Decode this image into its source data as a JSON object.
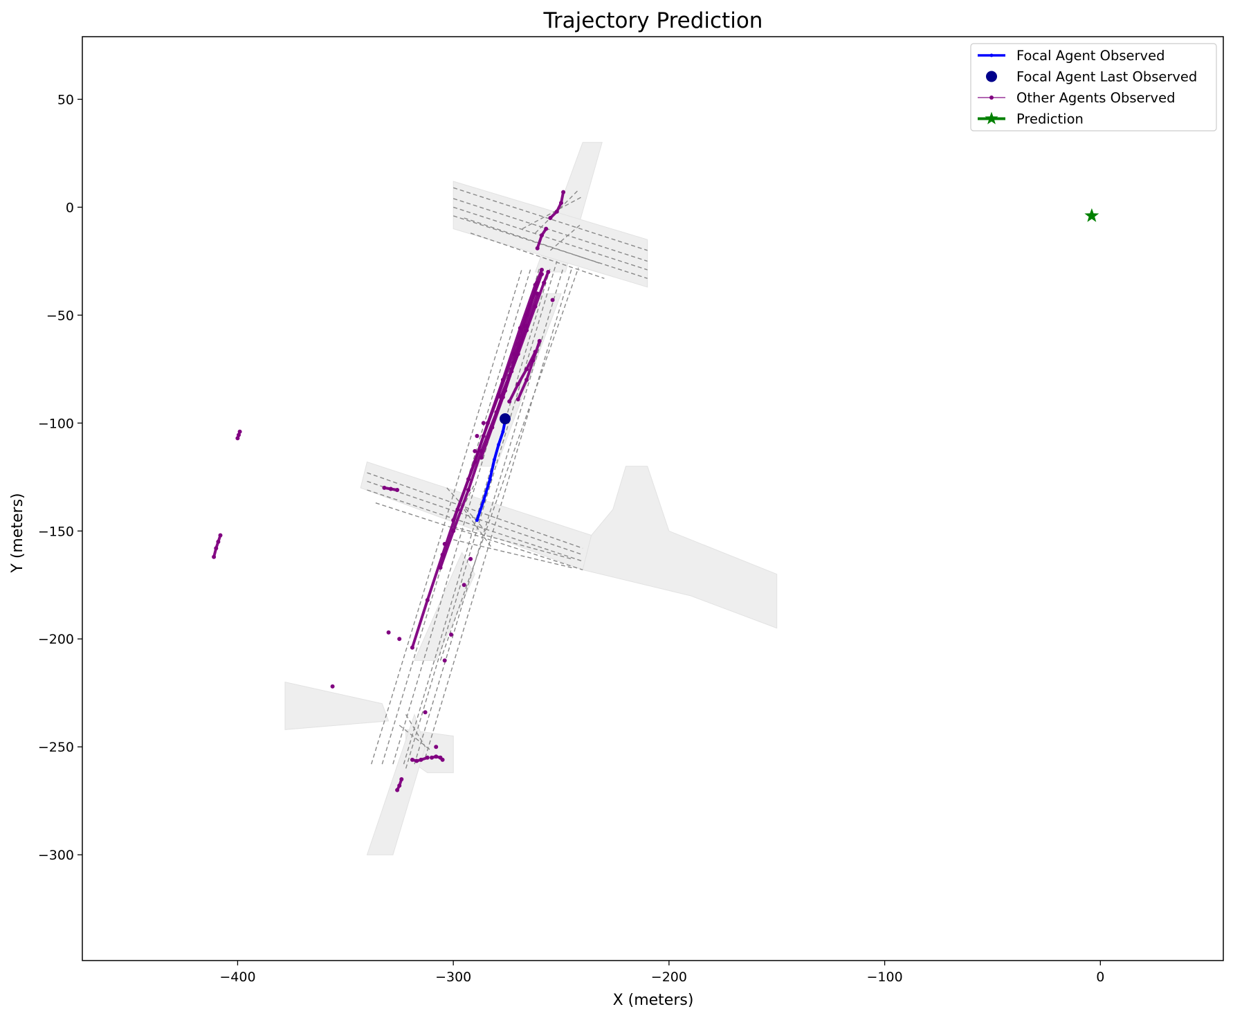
{
  "chart_data": {
    "type": "scatter",
    "title": "Trajectory Prediction",
    "xlabel": "X (meters)",
    "ylabel": "Y (meters)",
    "xlim": [
      -472,
      57
    ],
    "ylim": [
      -349,
      79
    ],
    "xticks": [
      -400,
      -300,
      -200,
      -100,
      0
    ],
    "yticks": [
      50,
      0,
      -50,
      -100,
      -150,
      -200,
      -250,
      -300
    ],
    "xtick_labels": [
      "−400",
      "−300",
      "−200",
      "−100",
      "0"
    ],
    "ytick_labels": [
      "50",
      "0",
      "−50",
      "−100",
      "−150",
      "−200",
      "−250",
      "−300"
    ],
    "grid": false,
    "legend_position": "top-right",
    "legend": [
      {
        "label": "Focal Agent Observed",
        "kind": "line-dot",
        "color": "#0000ff"
      },
      {
        "label": "Focal Agent Last Observed",
        "kind": "dot",
        "color": "#00008b"
      },
      {
        "label": "Other Agents Observed",
        "kind": "thin-line-dot",
        "color": "#800080"
      },
      {
        "label": "Prediction",
        "kind": "line-star",
        "color": "#008000"
      }
    ],
    "colors": {
      "focal": "#0000ff",
      "focal_last": "#00008b",
      "other": "#800080",
      "prediction": "#008000",
      "drivable_area": "#eeeeee",
      "lane_line": "#888888"
    },
    "drivable_areas": [
      [
        [
          -262,
          -30
        ],
        [
          -240,
          30
        ],
        [
          -231,
          30
        ],
        [
          -248,
          -30
        ]
      ],
      [
        [
          -300,
          12
        ],
        [
          -210,
          -15
        ],
        [
          -210,
          -37
        ],
        [
          -300,
          -10
        ]
      ],
      [
        [
          -343,
          -130
        ],
        [
          -240,
          -168
        ],
        [
          -236,
          -152
        ],
        [
          -340,
          -118
        ]
      ],
      [
        [
          -236,
          -152
        ],
        [
          -226,
          -140
        ],
        [
          -220,
          -120
        ],
        [
          -210,
          -120
        ],
        [
          -200,
          -150
        ],
        [
          -150,
          -170
        ],
        [
          -150,
          -195
        ],
        [
          -190,
          -180
        ],
        [
          -240,
          -168
        ]
      ],
      [
        [
          -333,
          -230
        ],
        [
          -378,
          -220
        ],
        [
          -378,
          -230
        ],
        [
          -378,
          -242
        ],
        [
          -330,
          -238
        ]
      ],
      [
        [
          -322,
          -242
        ],
        [
          -300,
          -245
        ],
        [
          -300,
          -262
        ],
        [
          -312,
          -262
        ],
        [
          -322,
          -255
        ]
      ],
      [
        [
          -318,
          -235
        ],
        [
          -340,
          -300
        ],
        [
          -328,
          -300
        ],
        [
          -313,
          -250
        ]
      ],
      [
        [
          -296,
          -160
        ],
        [
          -318,
          -210
        ],
        [
          -308,
          -210
        ],
        [
          -290,
          -170
        ]
      ],
      [
        [
          -290,
          -120
        ],
        [
          -260,
          -40
        ],
        [
          -250,
          -40
        ],
        [
          -280,
          -120
        ]
      ]
    ],
    "lane_centerlines": [
      [
        [
          -300,
          9
        ],
        [
          -210,
          -20
        ]
      ],
      [
        [
          -300,
          4
        ],
        [
          -210,
          -25
        ]
      ],
      [
        [
          -300,
          0
        ],
        [
          -210,
          -29
        ]
      ],
      [
        [
          -300,
          -4
        ],
        [
          -210,
          -33
        ]
      ],
      [
        [
          -295,
          -5
        ],
        [
          -232,
          -26
        ]
      ],
      [
        [
          -292,
          -12
        ],
        [
          -230,
          -33
        ]
      ],
      [
        [
          -340,
          -123
        ],
        [
          -240,
          -158
        ]
      ],
      [
        [
          -340,
          -127
        ],
        [
          -240,
          -161
        ]
      ],
      [
        [
          -340,
          -131
        ],
        [
          -240,
          -164
        ]
      ],
      [
        [
          -336,
          -137
        ],
        [
          -240,
          -168
        ]
      ],
      [
        [
          -300,
          -148
        ],
        [
          -245,
          -163
        ]
      ],
      [
        [
          -300,
          -154
        ],
        [
          -245,
          -167
        ]
      ],
      [
        [
          -338,
          -258
        ],
        [
          -268,
          -28
        ]
      ],
      [
        [
          -333,
          -258
        ],
        [
          -264,
          -28
        ]
      ],
      [
        [
          -328,
          -258
        ],
        [
          -260,
          -28
        ]
      ],
      [
        [
          -323,
          -258
        ],
        [
          -255,
          -28
        ]
      ],
      [
        [
          -322,
          -260
        ],
        [
          -252,
          -25
        ]
      ],
      [
        [
          -318,
          -258
        ],
        [
          -249,
          -28
        ]
      ],
      [
        [
          -313,
          -255
        ],
        [
          -245,
          -28
        ]
      ],
      [
        [
          -306,
          -210
        ],
        [
          -242,
          -28
        ]
      ],
      [
        [
          -268,
          -10
        ],
        [
          -240,
          5
        ]
      ],
      [
        [
          -262,
          -12
        ],
        [
          -242,
          8
        ]
      ],
      [
        [
          -255,
          -20
        ],
        [
          -241,
          -8
        ]
      ],
      [
        [
          -303,
          -130
        ],
        [
          -285,
          -150
        ]
      ],
      [
        [
          -295,
          -140
        ],
        [
          -282,
          -158
        ]
      ],
      [
        [
          -300,
          -148
        ],
        [
          -290,
          -128
        ]
      ],
      [
        [
          -325,
          -240
        ],
        [
          -310,
          -252
        ]
      ],
      [
        [
          -322,
          -235
        ],
        [
          -313,
          -250
        ]
      ]
    ],
    "focal_observed": {
      "x": [
        -289,
        -286,
        -283,
        -281,
        -279,
        -277,
        -276
      ],
      "y": [
        -145,
        -136,
        -126,
        -117,
        -110,
        -104,
        -99
      ]
    },
    "focal_last_observed": {
      "x": -276,
      "y": -98
    },
    "prediction": {
      "x": -4,
      "y": -4
    },
    "other_agents": [
      {
        "x": [
          -319,
          -312,
          -305,
          -298,
          -290,
          -284,
          -277,
          -269,
          -262,
          -259
        ],
        "y": [
          -204,
          -182,
          -161,
          -140,
          -118,
          -100,
          -80,
          -56,
          -36,
          -29
        ]
      },
      {
        "x": [
          -306,
          -300,
          -293,
          -287,
          -280,
          -273,
          -267,
          -261
        ],
        "y": [
          -167,
          -150,
          -131,
          -113,
          -95,
          -75,
          -55,
          -35
        ]
      },
      {
        "x": [
          -300,
          -293,
          -286,
          -279,
          -272,
          -266,
          -259
        ],
        "y": [
          -145,
          -126,
          -106,
          -87,
          -68,
          -50,
          -31
        ]
      },
      {
        "x": [
          -287,
          -282,
          -277,
          -272,
          -266,
          -261
        ],
        "y": [
          -116,
          -102,
          -88,
          -72,
          -55,
          -40
        ]
      },
      {
        "x": [
          -278,
          -274,
          -270,
          -266,
          -262,
          -258,
          -256
        ],
        "y": [
          -88,
          -78,
          -68,
          -57,
          -46,
          -35,
          -30
        ]
      },
      {
        "x": [
          -274,
          -270,
          -266,
          -262
        ],
        "y": [
          -90,
          -82,
          -75,
          -67
        ]
      },
      {
        "x": [
          -270,
          -266,
          -263,
          -260
        ],
        "y": [
          -89,
          -80,
          -71,
          -62
        ]
      },
      {
        "x": [
          -280,
          -276,
          -273,
          -270
        ],
        "y": [
          -95,
          -85,
          -76,
          -68
        ]
      },
      {
        "x": [
          -255,
          -252,
          -250,
          -249
        ],
        "y": [
          -5,
          -2,
          2,
          7
        ]
      },
      {
        "x": [
          -261,
          -259,
          -257
        ],
        "y": [
          -19,
          -13,
          -10
        ]
      },
      {
        "x": [
          -411,
          -410,
          -409,
          -408
        ],
        "y": [
          -162,
          -158,
          -155,
          -152
        ]
      },
      {
        "x": [
          -400,
          -399.5,
          -399
        ],
        "y": [
          -107,
          -105.5,
          -104
        ]
      },
      {
        "x": [
          -332,
          -329,
          -326
        ],
        "y": [
          -130,
          -130.5,
          -131
        ]
      },
      {
        "x": [
          -319,
          -317,
          -315,
          -312
        ],
        "y": [
          -256,
          -256.5,
          -256,
          -255
        ]
      },
      {
        "x": [
          -310,
          -308,
          -306,
          -305
        ],
        "y": [
          -255,
          -254.5,
          -255,
          -256
        ]
      },
      {
        "x": [
          -326,
          -325,
          -324
        ],
        "y": [
          -270,
          -268,
          -265
        ]
      },
      {
        "x": [
          -356
        ],
        "y": [
          -222
        ]
      },
      {
        "x": [
          -330
        ],
        "y": [
          -197
        ]
      },
      {
        "x": [
          -325
        ],
        "y": [
          -200
        ]
      },
      {
        "x": [
          -313
        ],
        "y": [
          -234
        ]
      },
      {
        "x": [
          -308
        ],
        "y": [
          -250
        ]
      },
      {
        "x": [
          -304
        ],
        "y": [
          -210
        ]
      },
      {
        "x": [
          -301
        ],
        "y": [
          -198
        ]
      },
      {
        "x": [
          -295
        ],
        "y": [
          -175
        ]
      },
      {
        "x": [
          -292
        ],
        "y": [
          -163
        ]
      },
      {
        "x": [
          -304
        ],
        "y": [
          -156
        ]
      },
      {
        "x": [
          -290
        ],
        "y": [
          -113
        ]
      },
      {
        "x": [
          -289
        ],
        "y": [
          -106
        ]
      },
      {
        "x": [
          -286
        ],
        "y": [
          -100
        ]
      },
      {
        "x": [
          -254
        ],
        "y": [
          -43
        ]
      }
    ]
  }
}
